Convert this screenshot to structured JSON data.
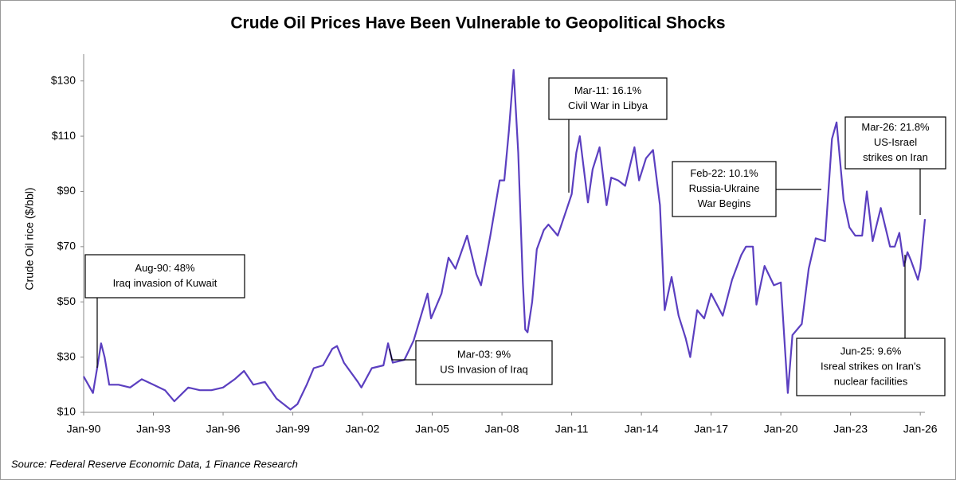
{
  "chart_data": {
    "type": "line",
    "title": "Crude Oil Prices Have Been Vulnerable to Geopolitical Shocks",
    "y_label": "Crude Oil rice ($/bbl)",
    "source": "Source: Federal Reserve Economic Data, 1 Finance Research",
    "xlim": [
      1990,
      2026.2
    ],
    "ylim": [
      10,
      140
    ],
    "xticks": [
      {
        "value": 1990,
        "label": "Jan-90"
      },
      {
        "value": 1993,
        "label": "Jan-93"
      },
      {
        "value": 1996,
        "label": "Jan-96"
      },
      {
        "value": 1999,
        "label": "Jan-99"
      },
      {
        "value": 2002,
        "label": "Jan-02"
      },
      {
        "value": 2005,
        "label": "Jan-05"
      },
      {
        "value": 2008,
        "label": "Jan-08"
      },
      {
        "value": 2011,
        "label": "Jan-11"
      },
      {
        "value": 2014,
        "label": "Jan-14"
      },
      {
        "value": 2017,
        "label": "Jan-17"
      },
      {
        "value": 2020,
        "label": "Jan-20"
      },
      {
        "value": 2023,
        "label": "Jan-23"
      },
      {
        "value": 2026,
        "label": "Jan-26"
      }
    ],
    "yticks": [
      {
        "value": 10,
        "label": "$10"
      },
      {
        "value": 30,
        "label": "$30"
      },
      {
        "value": 50,
        "label": "$50"
      },
      {
        "value": 70,
        "label": "$70"
      },
      {
        "value": 90,
        "label": "$90"
      },
      {
        "value": 110,
        "label": "$110"
      },
      {
        "value": 130,
        "label": "$130"
      }
    ],
    "grid": false,
    "series": [
      {
        "color": "#5b3fc0",
        "x": [
          1990.0,
          1990.4,
          1990.6,
          1990.75,
          1990.9,
          1991.1,
          1991.5,
          1992.0,
          1992.5,
          1993.0,
          1993.5,
          1993.9,
          1994.5,
          1995.0,
          1995.5,
          1996.0,
          1996.5,
          1996.9,
          1997.3,
          1997.8,
          1998.3,
          1998.9,
          1999.2,
          1999.6,
          1999.9,
          2000.3,
          2000.7,
          2000.9,
          2001.2,
          2001.8,
          2001.95,
          2002.4,
          2002.9,
          2003.1,
          2003.3,
          2003.8,
          2004.2,
          2004.8,
          2004.95,
          2005.4,
          2005.7,
          2006.0,
          2006.5,
          2006.9,
          2007.1,
          2007.5,
          2007.9,
          2008.1,
          2008.3,
          2008.5,
          2008.7,
          2008.9,
          2009.0,
          2009.1,
          2009.3,
          2009.5,
          2009.8,
          2010.0,
          2010.4,
          2010.8,
          2011.0,
          2011.2,
          2011.35,
          2011.7,
          2011.9,
          2012.2,
          2012.5,
          2012.7,
          2013.0,
          2013.3,
          2013.7,
          2013.9,
          2014.2,
          2014.5,
          2014.8,
          2015.0,
          2015.3,
          2015.6,
          2015.9,
          2016.1,
          2016.4,
          2016.7,
          2017.0,
          2017.5,
          2017.9,
          2018.3,
          2018.5,
          2018.8,
          2018.95,
          2019.3,
          2019.7,
          2020.0,
          2020.2,
          2020.3,
          2020.5,
          2020.9,
          2021.2,
          2021.5,
          2021.9,
          2022.2,
          2022.4,
          2022.7,
          2022.95,
          2023.2,
          2023.5,
          2023.7,
          2023.95,
          2024.3,
          2024.7,
          2024.9,
          2025.1,
          2025.3,
          2025.45,
          2025.6,
          2025.9,
          2026.0,
          2026.2
        ],
        "values": [
          23,
          17,
          27,
          35,
          30,
          20,
          20,
          19,
          22,
          20,
          18,
          14,
          19,
          18,
          18,
          19,
          22,
          25,
          20,
          21,
          15,
          11,
          13,
          20,
          26,
          27,
          33,
          34,
          28,
          21,
          19,
          26,
          27,
          35,
          28,
          29,
          36,
          53,
          44,
          53,
          66,
          62,
          74,
          60,
          56,
          74,
          94,
          94,
          112,
          134,
          104,
          57,
          40,
          39,
          50,
          69,
          76,
          78,
          74,
          84,
          89,
          104,
          110,
          86,
          98,
          106,
          85,
          95,
          94,
          92,
          106,
          94,
          102,
          105,
          85,
          47,
          59,
          45,
          37,
          30,
          47,
          44,
          53,
          45,
          58,
          67,
          70,
          70,
          49,
          63,
          56,
          57,
          30,
          17,
          38,
          42,
          62,
          73,
          72,
          109,
          115,
          87,
          77,
          74,
          74,
          90,
          72,
          84,
          70,
          70,
          75,
          63,
          68,
          65,
          58,
          62,
          80
        ]
      }
    ],
    "annotations": [
      {
        "lines": [
          "Aug-90: 48%",
          "Iraq invasion of Kuwait"
        ]
      },
      {
        "lines": [
          "Mar-03:  9%",
          "US Invasion of Iraq"
        ]
      },
      {
        "lines": [
          "Mar-11: 16.1%",
          "Civil War in Libya"
        ]
      },
      {
        "lines": [
          "Feb-22: 10.1%",
          "Russia-Ukraine",
          "War Begins"
        ]
      },
      {
        "lines": [
          "Jun-25: 9.6%",
          "Isreal strikes on Iran's",
          "nuclear facilities"
        ]
      },
      {
        "lines": [
          "Mar-26: 21.8%",
          "US-Israel",
          "strikes on Iran"
        ]
      }
    ]
  }
}
